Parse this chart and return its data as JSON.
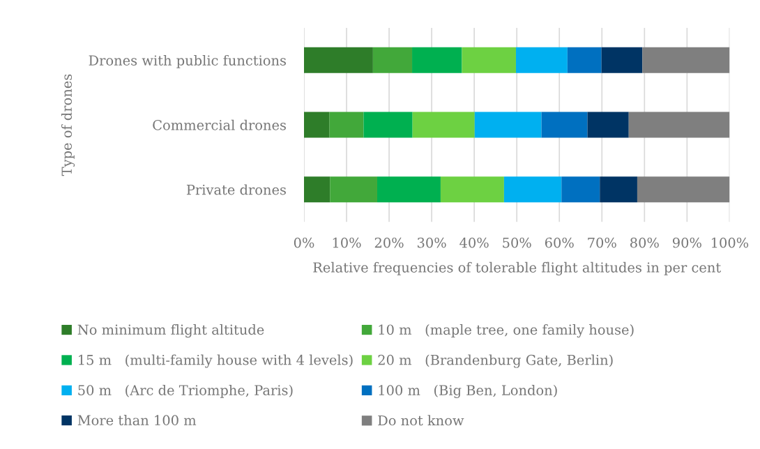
{
  "chart_data": {
    "type": "bar",
    "orientation": "horizontal",
    "stacked": true,
    "ylabel": "Type of drones",
    "xlabel": "Relative frequencies of tolerable flight altitudes in per cent",
    "categories": [
      "Drones with public functions",
      "Commercial drones",
      "Private drones"
    ],
    "series": [
      {
        "name": "No minimum flight altitude",
        "color": "#2e7d29",
        "values": [
          16.2,
          6.0,
          6.1
        ]
      },
      {
        "name": "10 m   (maple tree, one family house)",
        "color": "#42a83a",
        "values": [
          9.2,
          8.0,
          11.1
        ]
      },
      {
        "name": "15 m   (multi-family house with 4 levels)",
        "color": "#00b050",
        "values": [
          11.7,
          11.5,
          14.9
        ]
      },
      {
        "name": "20 m   (Brandenburg Gate, Berlin)",
        "color": "#6dd142",
        "values": [
          12.7,
          14.6,
          14.9
        ]
      },
      {
        "name": "50 m   (Arc de Triomphe, Paris)",
        "color": "#00b0f0",
        "values": [
          12.1,
          15.7,
          13.5
        ]
      },
      {
        "name": "100 m   (Big Ben, London)",
        "color": "#0070c0",
        "values": [
          8.0,
          10.8,
          9.0
        ]
      },
      {
        "name": "More than 100 m",
        "color": "#003464",
        "values": [
          9.6,
          9.7,
          8.8
        ]
      },
      {
        "name": "Do not know",
        "color": "#7f7f7f",
        "values": [
          20.5,
          23.7,
          21.7
        ]
      }
    ],
    "xlim": [
      0,
      100
    ],
    "xticks": [
      {
        "value": 0,
        "label": "0%"
      },
      {
        "value": 10,
        "label": "10%"
      },
      {
        "value": 20,
        "label": "20%"
      },
      {
        "value": 30,
        "label": "30%"
      },
      {
        "value": 40,
        "label": "40%"
      },
      {
        "value": 50,
        "label": "50%"
      },
      {
        "value": 60,
        "label": "60%"
      },
      {
        "value": 70,
        "label": "70%"
      },
      {
        "value": 80,
        "label": "80%"
      },
      {
        "value": 90,
        "label": "90%"
      },
      {
        "value": 100,
        "label": "100%"
      }
    ],
    "grid": "x",
    "legend": "bottom"
  }
}
